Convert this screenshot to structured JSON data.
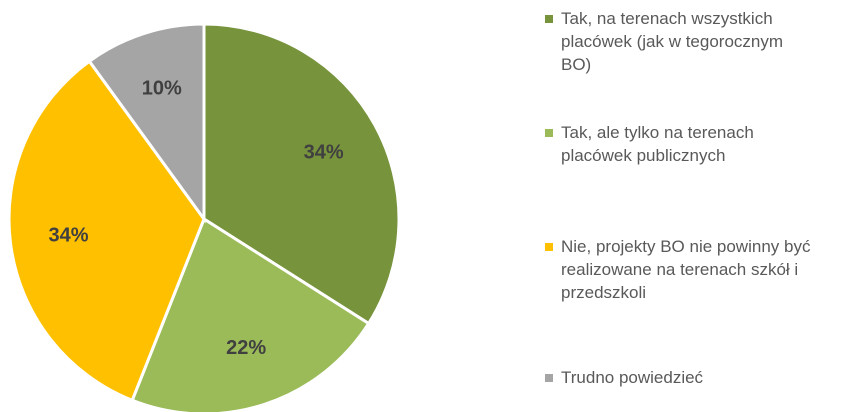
{
  "chart_data": {
    "type": "pie",
    "categories": [
      "Tak, na terenach wszystkich placówek (jak w tegorocznym BO)",
      "Tak, ale tylko na terenach placówek publicznych",
      "Nie, projekty BO nie powinny być realizowane na terenach szkół i przedszkoli",
      "Trudno powiedzieć"
    ],
    "values": [
      34,
      22,
      34,
      10
    ],
    "value_labels": [
      "34%",
      "22%",
      "34%",
      "10%"
    ],
    "colors": [
      "#77933c",
      "#9bbb59",
      "#ffc000",
      "#a5a5a5"
    ]
  }
}
